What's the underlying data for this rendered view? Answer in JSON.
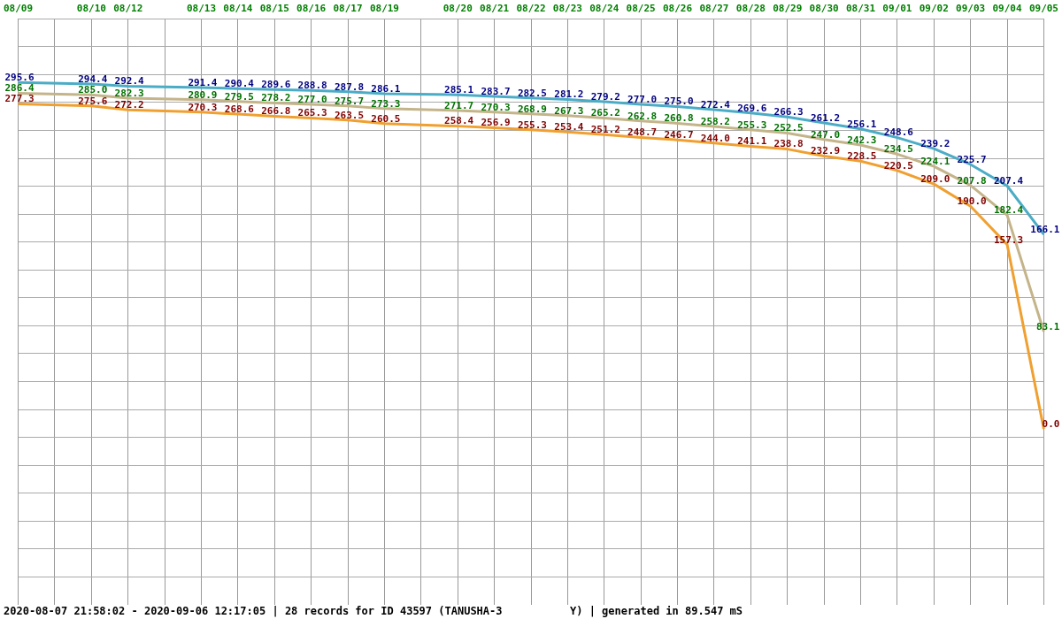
{
  "chart_data": {
    "type": "line",
    "categories": [
      "08/09",
      null,
      "08/10",
      "08/12",
      null,
      "08/13",
      "08/14",
      "08/15",
      "08/16",
      "08/17",
      "08/19",
      null,
      "08/20",
      "08/21",
      "08/22",
      "08/23",
      "08/24",
      "08/25",
      "08/26",
      "08/27",
      "08/28",
      "08/29",
      "08/30",
      "08/31",
      "09/01",
      "09/02",
      "09/03",
      "09/04",
      "09/05"
    ],
    "series": [
      {
        "color": "#4bacc6",
        "values": [
          295.6,
          null,
          294.4,
          292.4,
          null,
          291.4,
          290.4,
          289.6,
          288.8,
          287.8,
          286.1,
          null,
          285.1,
          283.7,
          282.5,
          281.2,
          279.2,
          277.0,
          275.0,
          272.4,
          269.6,
          266.3,
          261.2,
          256.1,
          248.6,
          239.2,
          225.7,
          207.4,
          166.1
        ],
        "value_labels": [
          "295.6",
          null,
          "294.4",
          "292.4",
          null,
          "291.4",
          "290.4",
          "289.6",
          "288.8",
          "287.8",
          "286.1",
          null,
          "285.1",
          "283.7",
          "282.5",
          "281.2",
          "279.2",
          "277.0",
          "275.0",
          "272.4",
          "269.6",
          "266.3",
          "261.2",
          "256.1",
          "248.6",
          "239.2",
          "225.7",
          "207.4",
          "166.1"
        ]
      },
      {
        "color": "#c4b48a",
        "values": [
          286.4,
          null,
          285.0,
          282.3,
          null,
          280.9,
          279.5,
          278.2,
          277.0,
          275.7,
          273.3,
          null,
          271.7,
          270.3,
          268.9,
          267.3,
          265.2,
          262.8,
          260.8,
          258.2,
          255.3,
          252.5,
          247.0,
          242.3,
          234.5,
          224.1,
          207.8,
          182.4,
          83.1
        ],
        "value_labels": [
          "286.4",
          null,
          "285.0",
          "282.3",
          null,
          "280.9",
          "279.5",
          "278.2",
          "277.0",
          "275.7",
          "273.3",
          null,
          "271.7",
          "270.3",
          "268.9",
          "267.3",
          "265.2",
          "262.8",
          "260.8",
          "258.2",
          "255.3",
          "252.5",
          "247.0",
          "242.3",
          "234.5",
          "224.1",
          "207.8",
          "182.4",
          "83.1"
        ]
      },
      {
        "color": "#f0a030",
        "values": [
          277.3,
          null,
          275.6,
          272.2,
          null,
          270.3,
          268.6,
          266.8,
          265.3,
          263.5,
          260.5,
          null,
          258.4,
          256.9,
          255.3,
          253.4,
          251.2,
          248.7,
          246.7,
          244.0,
          241.1,
          238.8,
          232.9,
          228.5,
          220.5,
          209.0,
          190.0,
          157.3,
          0.0
        ],
        "value_labels": [
          "277.3",
          null,
          "275.6",
          "272.2",
          null,
          "270.3",
          "268.6",
          "266.8",
          "265.3",
          "263.5",
          "260.5",
          null,
          "258.4",
          "256.9",
          "255.3",
          "253.4",
          "251.2",
          "248.7",
          "246.7",
          "244.0",
          "241.1",
          "238.8",
          "232.9",
          "228.5",
          "220.5",
          "209.0",
          "190.0",
          "157.3",
          "0.0"
        ]
      }
    ],
    "grid": true,
    "legend": false,
    "marker": "none",
    "line_style": "solid",
    "tick_labels": "x",
    "annotations": [
      "2020-08-07 21:58:02 - 2020-09-06 12:17:05 | 28 records for ID 43597 (TANUSHA-3",
      "Y) | generated in 89.547 mS"
    ]
  }
}
